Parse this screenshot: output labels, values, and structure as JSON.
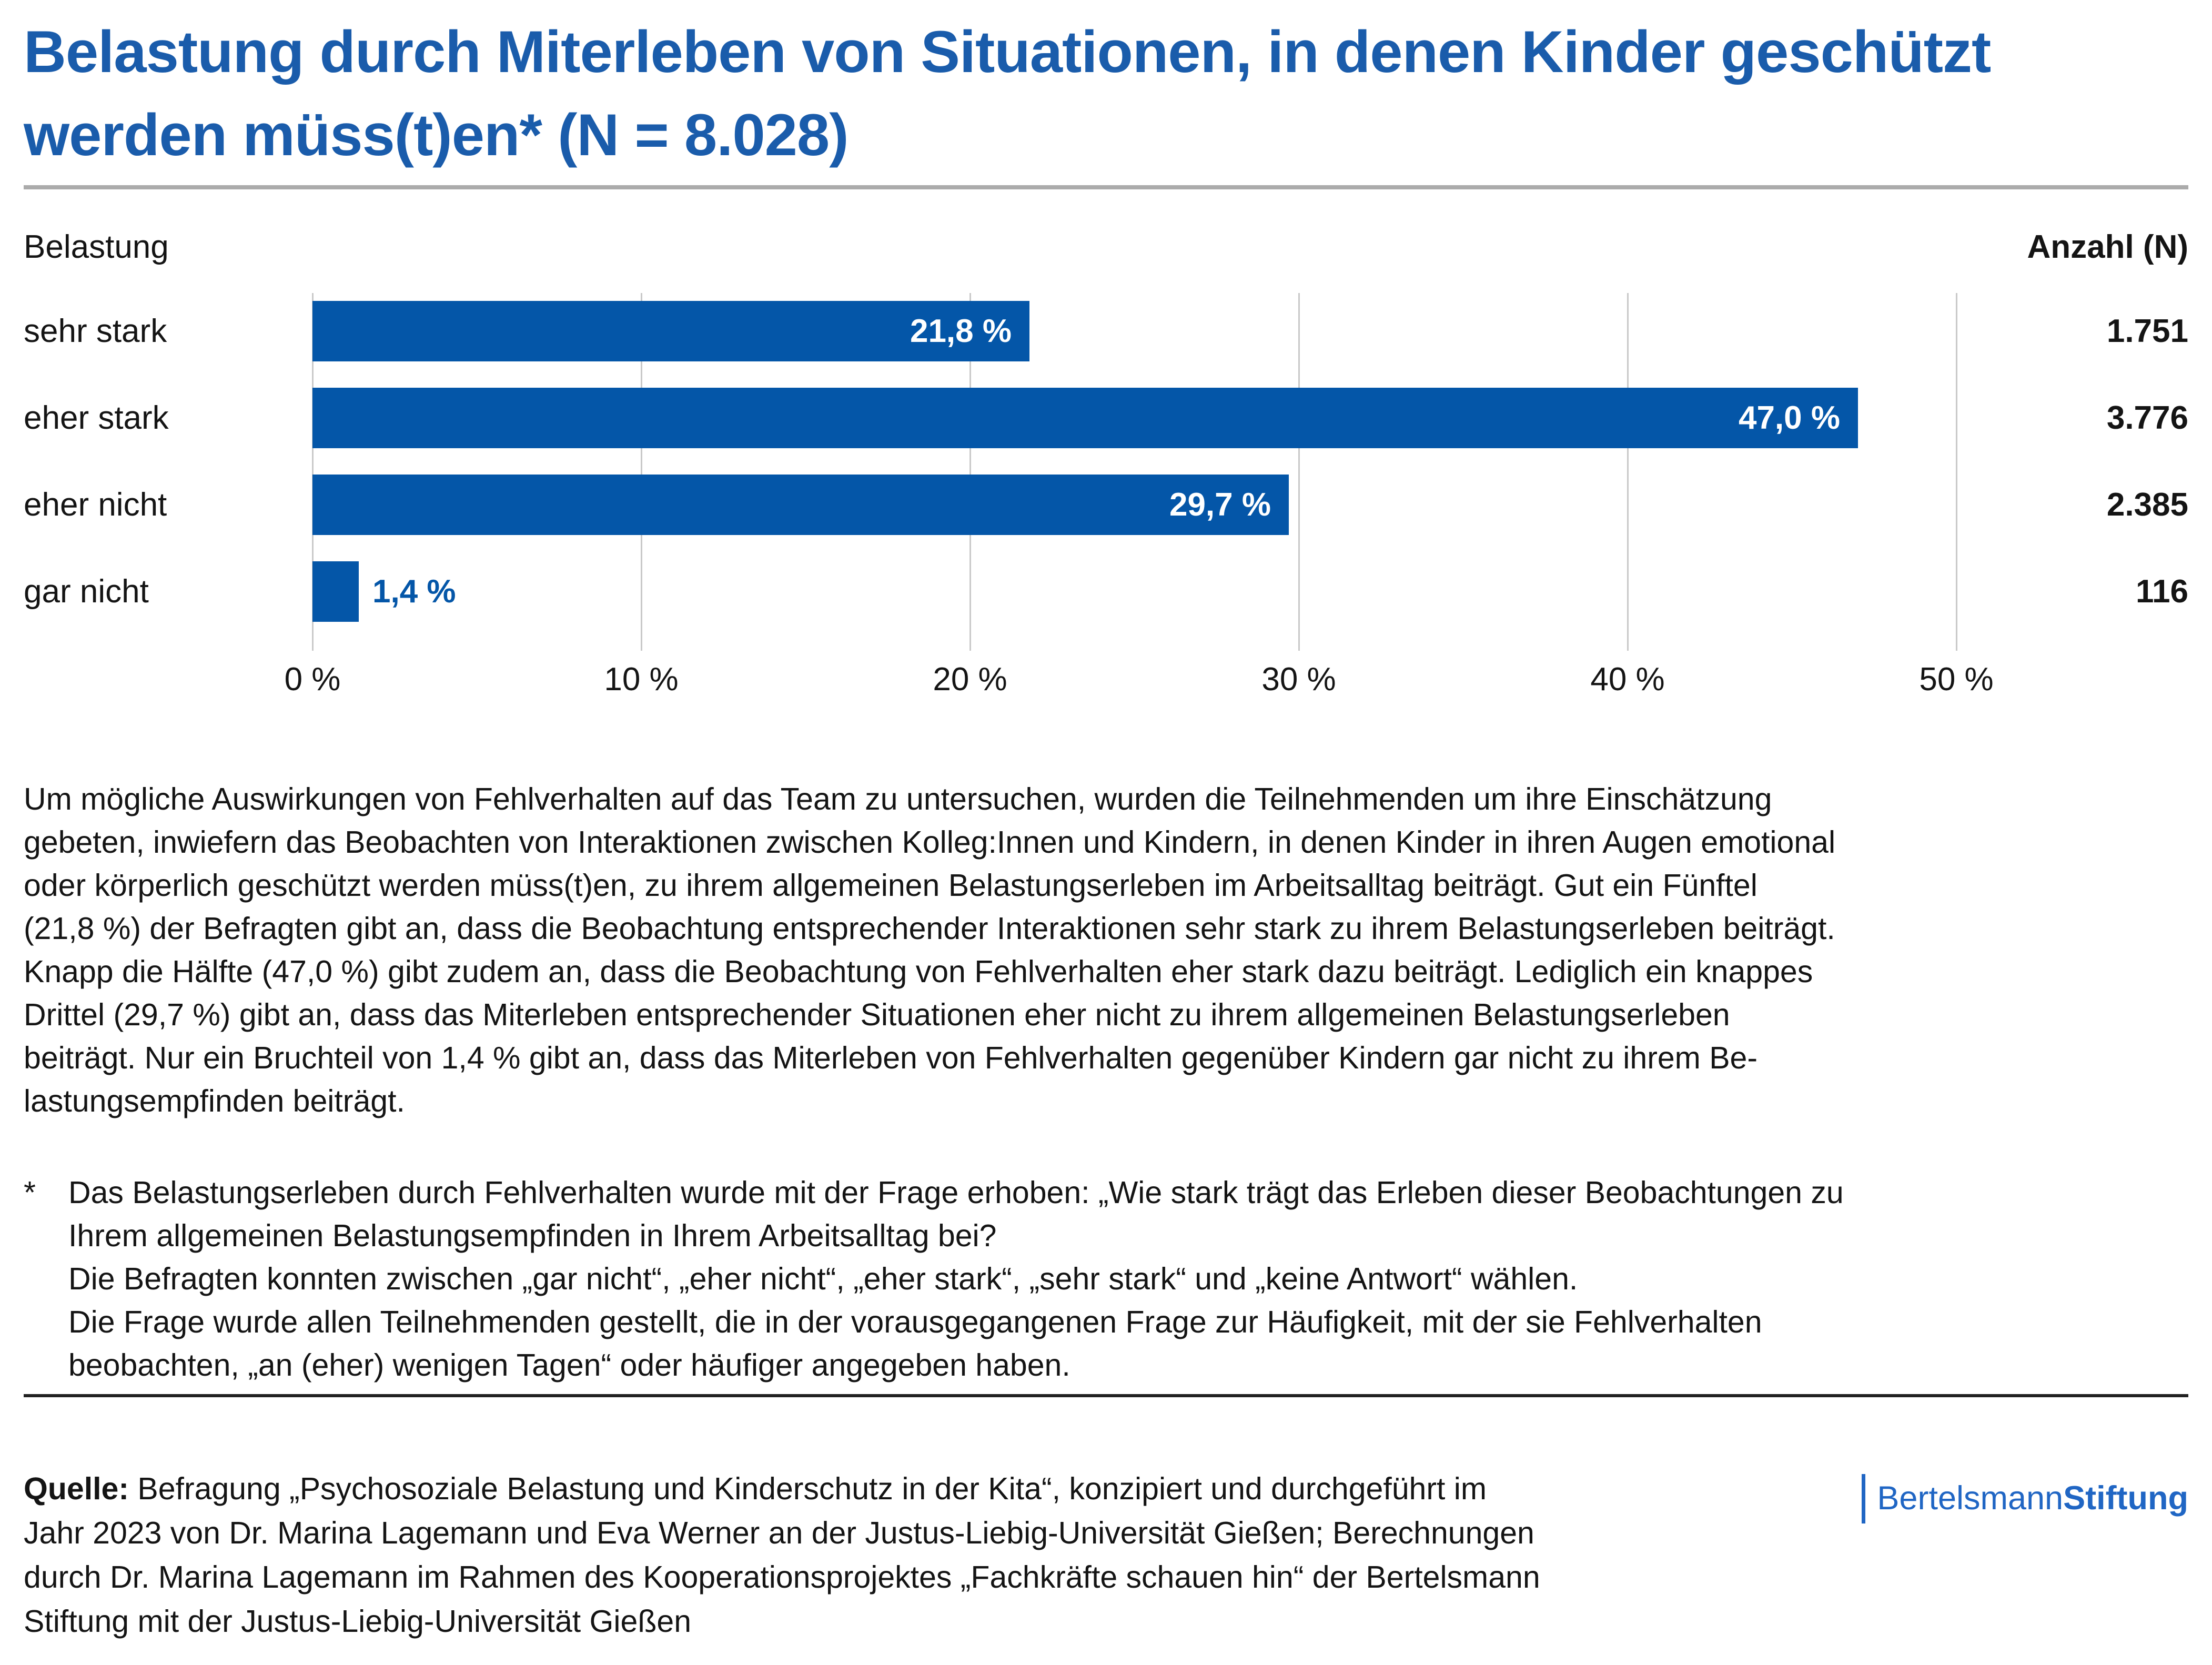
{
  "title": "Belastung durch Miterleben von Situationen, in denen Kinder geschützt\nwerden müss(t)en* (N = 8.028)",
  "chart_headers": {
    "left": "Belastung",
    "right": "Anzahl (N)"
  },
  "chart_data": {
    "type": "bar",
    "orientation": "horizontal",
    "title": "Belastung durch Miterleben von Situationen, in denen Kinder geschützt werden müss(t)en* (N = 8.028)",
    "total_n": "8.028",
    "categories": [
      "sehr stark",
      "eher stark",
      "eher nicht",
      "gar nicht"
    ],
    "values": [
      21.8,
      47.0,
      29.7,
      1.4
    ],
    "value_labels": [
      "21,8 %",
      "47,0 %",
      "29,7 %",
      "1,4 %"
    ],
    "counts": [
      1751,
      3776,
      2385,
      116
    ],
    "count_labels": [
      "1.751",
      "3.776",
      "2.385",
      "116"
    ],
    "x_ticks": [
      0,
      10,
      20,
      30,
      40,
      50
    ],
    "x_tick_labels": [
      "0 %",
      "10 %",
      "20 %",
      "30 %",
      "40 %",
      "50 %"
    ],
    "xlim": [
      0,
      50
    ],
    "grid": "vertical-light-gray",
    "legend": "none",
    "bar_color": "#0456a8",
    "value_label_color_inside": "#ffffff",
    "value_label_color_outside": "#0456a8"
  },
  "paragraph": "Um mögliche Auswirkungen von Fehlverhalten auf das Team zu untersuchen, wurden die Teilnehmenden um ihre Einschätzung\ngebeten, inwiefern das Beobachten von Interaktionen zwischen Kolleg:Innen und Kindern, in denen Kinder in ihren Augen emotional\noder körperlich geschützt werden müss(t)en, zu ihrem allgemeinen Belastungserleben im Arbeitsalltag beiträgt. Gut ein Fünftel\n(21,8 %) der Befragten gibt an, dass die Beobachtung entsprechender Interaktionen sehr stark zu ihrem Belastungserleben beiträgt.\nKnapp die Hälfte (47,0 %) gibt zudem an, dass die Beobachtung von Fehlverhalten eher stark dazu beiträgt. Lediglich ein knappes\nDrittel (29,7 %) gibt an, dass das Miterleben entsprechender Situationen eher nicht zu ihrem allgemeinen Belastungserleben\nbeiträgt. Nur ein Bruchteil von 1,4 % gibt an, dass das Miterleben von Fehlverhalten gegenüber Kindern gar nicht zu ihrem Be-\nlastungsempfinden beiträgt.",
  "footnote": {
    "marker": "*",
    "text": "Das Belastungserleben durch Fehlverhalten wurde mit der Frage erhoben: „Wie stark trägt das Erleben dieser Beobachtungen zu\nIhrem allgemeinen Belastungsempfinden in Ihrem Arbeitsalltag bei?\nDie Befragten konnten zwischen „gar nicht“, „eher nicht“, „eher stark“, „sehr stark“ und „keine Antwort“ wählen.\nDie Frage wurde allen Teilnehmenden gestellt, die in der vorausgegangenen Frage zur Häufigkeit, mit der sie Fehlverhalten\nbeobachten, „an (eher) wenigen Tagen“ oder häufiger angegeben haben."
  },
  "source": {
    "label": "Quelle:",
    "text": " Befragung „Psychosoziale Belastung und Kinderschutz in der Kita“, konzipiert und durchgeführt im\nJahr 2023 von Dr. Marina Lagemann und Eva Werner an der Justus-Liebig-Universität Gießen; Berechnungen\ndurch Dr. Marina Lagemann im Rahmen des Kooperationsprojektes „Fachkräfte schauen hin“ der Bertelsmann\nStiftung mit der Justus-Liebig-Universität Gießen"
  },
  "logo": {
    "part1": "Bertelsmann",
    "part2": "Stiftung"
  },
  "colors": {
    "title_blue": "#1a5cab",
    "bar_blue": "#0456a8",
    "logo_blue": "#2066c4",
    "grid_gray": "#c9c9c9",
    "title_rule_gray": "#ababab",
    "source_rule_dark": "#212121"
  }
}
